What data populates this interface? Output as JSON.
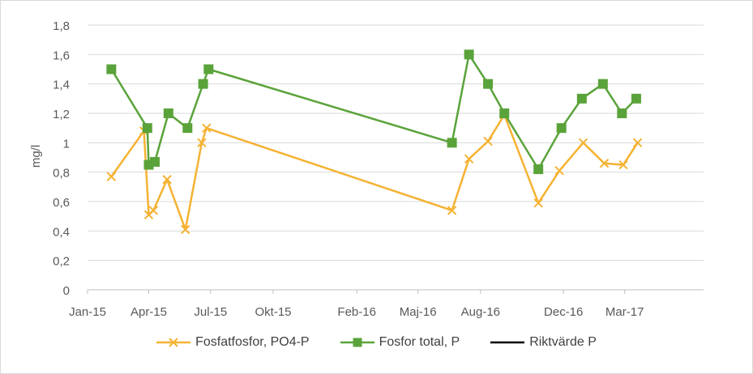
{
  "chart_data": {
    "type": "line",
    "ylabel": "mg/l",
    "xlabel": "",
    "ylim": [
      0,
      1.8
    ],
    "yticks": [
      "0",
      "0,2",
      "0,4",
      "0,6",
      "0,8",
      "1",
      "1,2",
      "1,4",
      "1,6",
      "1,8"
    ],
    "xlim": [
      "2015-01-01",
      "2017-06-25"
    ],
    "xticks": [
      {
        "date": "2015-01-01",
        "label": "Jan-15"
      },
      {
        "date": "2015-04-01",
        "label": "Apr-15"
      },
      {
        "date": "2015-07-01",
        "label": "Jul-15"
      },
      {
        "date": "2015-10-01",
        "label": "Okt-15"
      },
      {
        "date": "2016-02-01",
        "label": "Feb-16"
      },
      {
        "date": "2016-05-01",
        "label": "Maj-16"
      },
      {
        "date": "2016-08-01",
        "label": "Aug-16"
      },
      {
        "date": "2016-12-01",
        "label": "Dec-16"
      },
      {
        "date": "2017-03-01",
        "label": "Mar-17"
      }
    ],
    "grid": "horizontal",
    "legend_position": "bottom",
    "series": [
      {
        "name": "Fosfatfosfor, PO4-P",
        "color": "#f5b232",
        "marker": "x",
        "points": [
          [
            "2015-02-05",
            0.77
          ],
          [
            "2015-03-25",
            1.08
          ],
          [
            "2015-04-01",
            0.51
          ],
          [
            "2015-04-08",
            0.54
          ],
          [
            "2015-04-28",
            0.75
          ],
          [
            "2015-05-25",
            0.41
          ],
          [
            "2015-06-18",
            1.0
          ],
          [
            "2015-06-25",
            1.1
          ],
          [
            "2016-06-20",
            0.54
          ],
          [
            "2016-07-15",
            0.89
          ],
          [
            "2016-08-12",
            1.01
          ],
          [
            "2016-09-05",
            1.19
          ],
          [
            "2016-10-25",
            0.59
          ],
          [
            "2016-11-25",
            0.81
          ],
          [
            "2016-12-30",
            1.0
          ],
          [
            "2017-01-30",
            0.86
          ],
          [
            "2017-02-27",
            0.85
          ],
          [
            "2017-03-20",
            1.0
          ]
        ]
      },
      {
        "name": "Fosfor total, P",
        "color": "#5aa33a",
        "marker": "square",
        "points": [
          [
            "2015-02-05",
            1.5
          ],
          [
            "2015-03-30",
            1.1
          ],
          [
            "2015-04-01",
            0.85
          ],
          [
            "2015-04-10",
            0.87
          ],
          [
            "2015-04-30",
            1.2
          ],
          [
            "2015-05-28",
            1.1
          ],
          [
            "2015-06-20",
            1.4
          ],
          [
            "2015-06-28",
            1.5
          ],
          [
            "2016-06-20",
            1.0
          ],
          [
            "2016-07-15",
            1.6
          ],
          [
            "2016-08-12",
            1.4
          ],
          [
            "2016-09-05",
            1.2
          ],
          [
            "2016-10-25",
            0.82
          ],
          [
            "2016-11-28",
            1.1
          ],
          [
            "2016-12-28",
            1.3
          ],
          [
            "2017-01-28",
            1.4
          ],
          [
            "2017-02-25",
            1.2
          ],
          [
            "2017-03-18",
            1.3
          ]
        ]
      },
      {
        "name": "Riktvärde P",
        "color": "#000000",
        "marker": "none",
        "points": []
      }
    ]
  }
}
